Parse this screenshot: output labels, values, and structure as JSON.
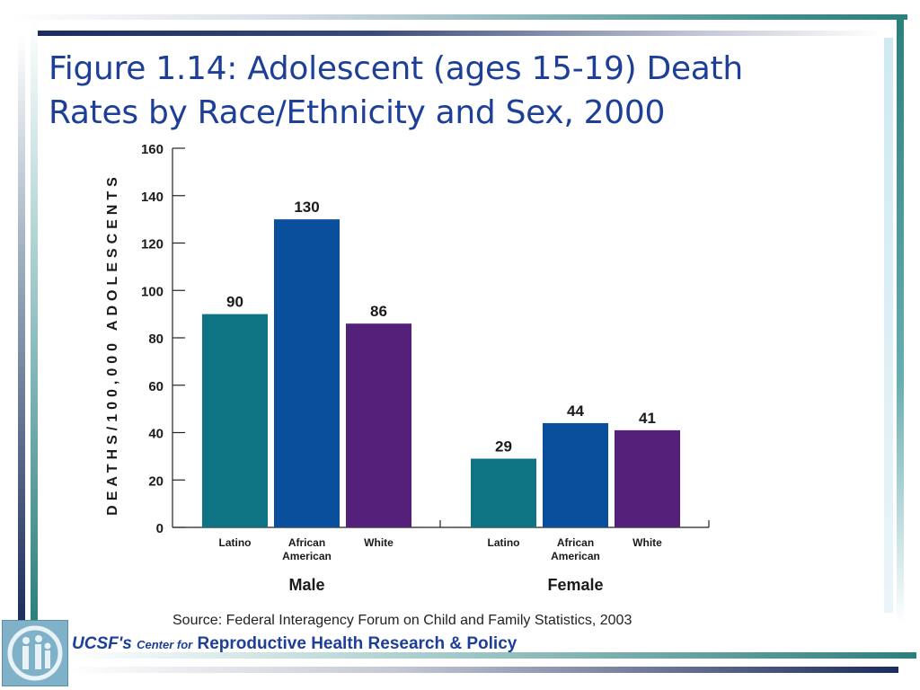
{
  "slide": {
    "title": "Figure 1.14: Adolescent (ages 15-19) Death Rates by Race/Ethnicity and Sex, 2000",
    "source": "Source: Federal Interagency Forum on Child and Family Statistics, 2003",
    "footer": {
      "ucsf": "UCSF's",
      "center_for": "Center for",
      "program": "Reproductive Health Research & Policy"
    }
  },
  "colors": {
    "title": "#1d3f98",
    "teal": "#0e7483",
    "blue": "#0a4f9c",
    "purple": "#55207a"
  },
  "chart_data": {
    "type": "bar",
    "ylabel": "DEATHS/100,000 ADOLESCENTS",
    "ylim": [
      0,
      160
    ],
    "yticks": [
      0,
      20,
      40,
      60,
      80,
      100,
      120,
      140,
      160
    ],
    "grid": false,
    "groups": [
      {
        "name": "Male",
        "categories": [
          "Latino",
          "African American",
          "White"
        ],
        "values": [
          90,
          130,
          86
        ]
      },
      {
        "name": "Female",
        "categories": [
          "Latino",
          "African American",
          "White"
        ],
        "values": [
          29,
          44,
          41
        ]
      }
    ],
    "bar_colors": [
      "#0e7483",
      "#0a4f9c",
      "#55207a"
    ]
  }
}
